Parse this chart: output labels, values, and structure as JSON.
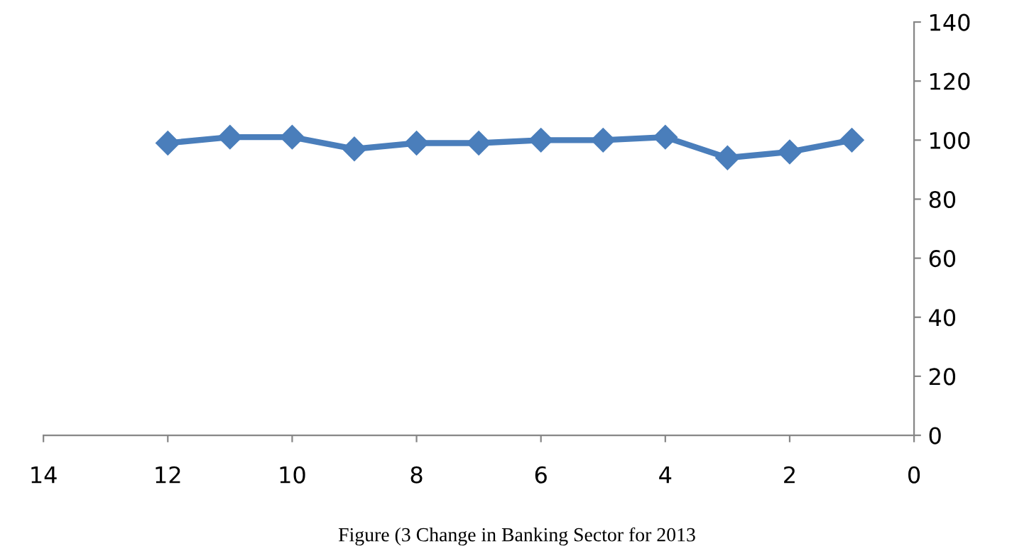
{
  "chart_data": {
    "type": "line",
    "x": [
      12,
      11,
      10,
      9,
      8,
      7,
      6,
      5,
      4,
      3,
      2,
      1
    ],
    "series": [
      {
        "color": "#4a7ebb",
        "values": [
          99,
          101,
          101,
          97,
          99,
          99,
          100,
          100,
          101,
          94,
          96,
          100
        ]
      }
    ],
    "xlim": [
      14,
      0
    ],
    "xticks": [
      14,
      12,
      10,
      8,
      6,
      4,
      2,
      0
    ],
    "ylim": [
      0,
      140
    ],
    "yticks": [
      0,
      20,
      40,
      60,
      80,
      100,
      120,
      140
    ],
    "marker": "diamond",
    "line_style": "solid",
    "grid": false,
    "legend": false,
    "annotations": [
      "Figure (3 Change in Banking Sector for 2013"
    ]
  }
}
